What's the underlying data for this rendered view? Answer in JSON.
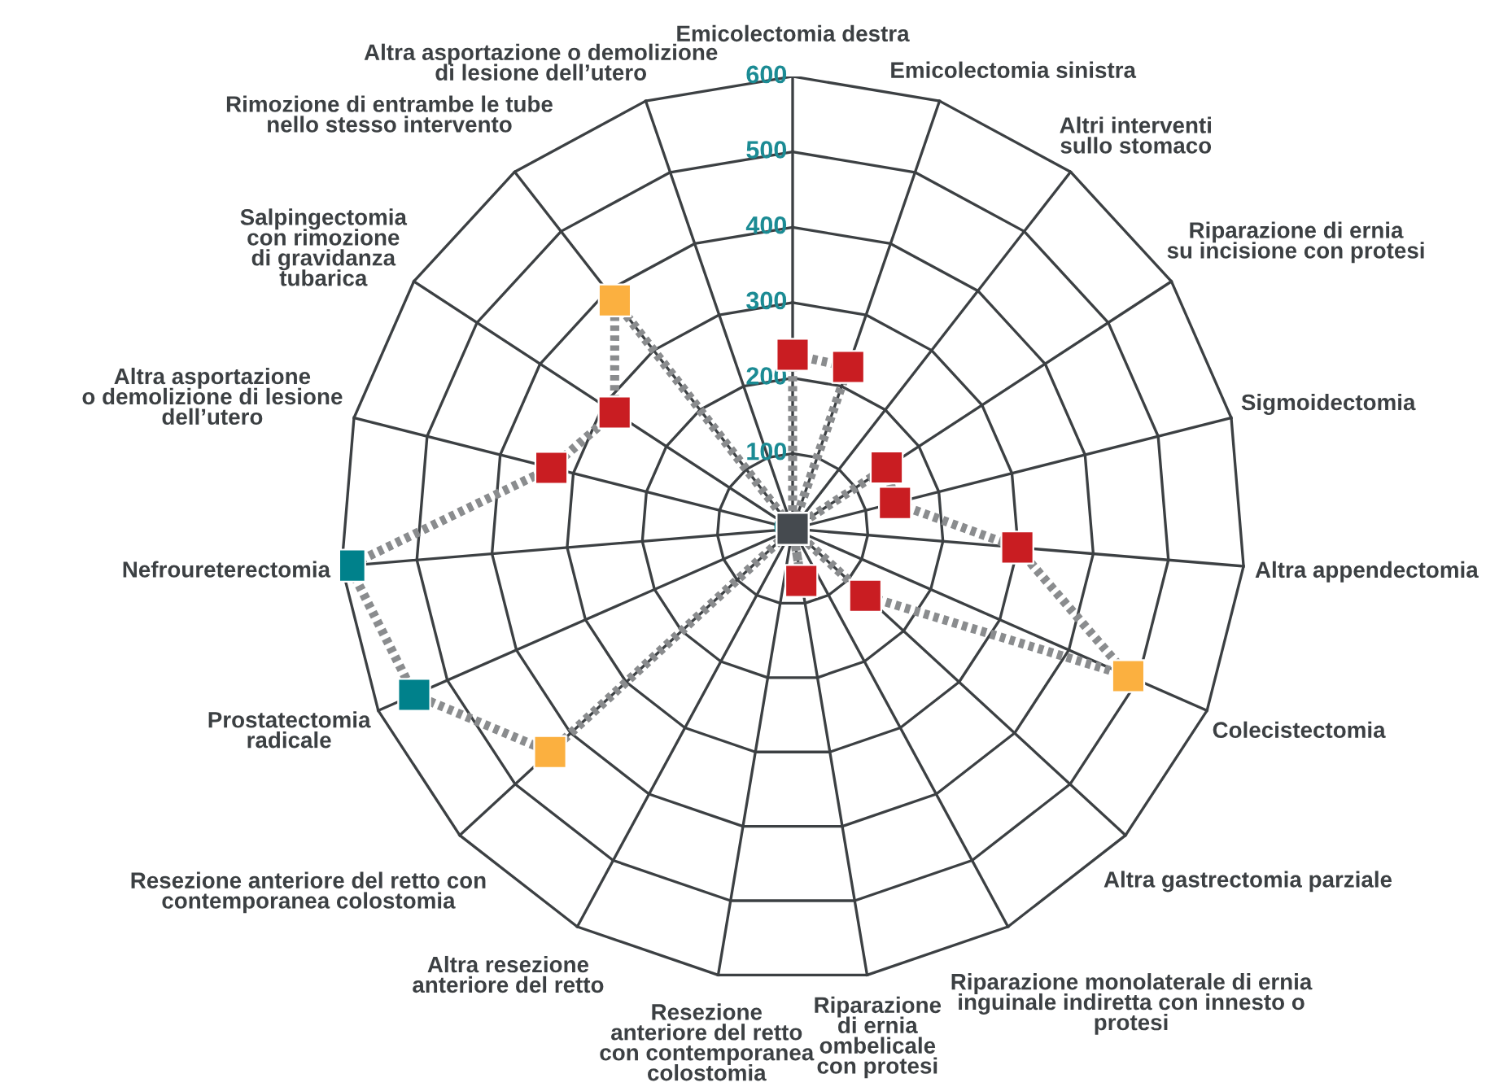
{
  "chart_data": {
    "type": "radar",
    "categories": [
      "Emicolectomia destra",
      "Emicolectomia sinistra",
      "Altri interventi\nsullo stomaco",
      "Riparazione di ernia\nsu incisione con protesi",
      "Sigmoidectomia",
      "Altra appendectomia",
      "Colecistectomia",
      "Altra gastrectomia parziale",
      "Riparazione monolaterale di ernia\ninguinale indiretta con innesto o\nprotesi",
      "Riparazione\ndi ernia\nombelicale\ncon protesi",
      "Resezione\nanteriore del retto\ncon contemporanea\ncolostomia",
      "Altra resezione\nanteriore del retto",
      "Resezione anteriore del retto con\ncontemporanea colostomia",
      "Prostatectomia\nradicale",
      "Nefroureterectomia",
      "Altra asportazione\no demolizione di lesione\ndell’utero",
      "Salpingectomia\ncon rimozione\ndi gravidanza\ntubarica",
      "Rimozione di entrambe le tube\nnello stesso intervento",
      "Altra asportazione o demolizione\ndi lesione dell’utero"
    ],
    "series": [
      {
        "color": "#8a8c8e",
        "colors": [
          "#c91d22",
          "#c91d22",
          "#454a4f",
          "#c91d22",
          "#c91d22",
          "#c91d22",
          "#fbb040",
          "#c91d22",
          "#454a4f",
          "#c91d22",
          "#454a4f",
          "#454a4f",
          "#fbb040",
          "#00818b",
          "#00818b",
          "#c91d22",
          "#c91d22",
          "#fbb040",
          "#454a4f"
        ],
        "values": [
          231,
          227,
          0,
          149,
          140,
          299,
          486,
          131,
          0,
          70,
          0,
          0,
          437,
          548,
          590,
          330,
          282,
          384,
          0
        ]
      }
    ],
    "ylim": [
      0,
      600
    ],
    "yticks": [
      0,
      100,
      200,
      300,
      400,
      500,
      600
    ],
    "grid": true,
    "marker": "square",
    "line_style": "dashed"
  }
}
